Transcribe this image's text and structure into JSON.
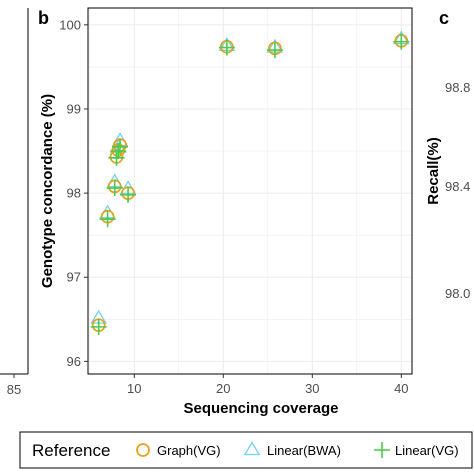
{
  "colors": {
    "graph": "#e5a11a",
    "bwa": "#6dd3ee",
    "vg": "#4cc94c",
    "grid": "#ebebeb",
    "frame": "#000000"
  },
  "left_panel": {
    "tick_labels": [
      "85"
    ]
  },
  "right_panel": {
    "letter": "c",
    "ylabel": "Recall(%)",
    "tick_labels": [
      "98.8",
      "98.4",
      "98.0"
    ]
  },
  "chart_data": {
    "type": "scatter",
    "panel_letter": "b",
    "title": "",
    "xlabel": "Sequencing coverage",
    "ylabel": "Genotype concordance (%)",
    "xlim": [
      4.8,
      41.2
    ],
    "ylim": [
      95.85,
      100.2
    ],
    "x_ticks": [
      10,
      20,
      30,
      40
    ],
    "y_ticks": [
      96,
      97,
      98,
      99,
      100
    ],
    "grid": true,
    "legend_position": "bottom",
    "series": [
      {
        "name": "Graph(VG)",
        "marker": "circle",
        "x": [
          6.0,
          7.0,
          7.8,
          8.0,
          8.2,
          8.4,
          9.3,
          20.4,
          25.8,
          40.0
        ],
        "y": [
          96.43,
          97.72,
          98.08,
          98.43,
          98.51,
          98.57,
          98.0,
          99.74,
          99.72,
          99.81
        ]
      },
      {
        "name": "Linear(BWA)",
        "marker": "triangle",
        "x": [
          6.0,
          7.0,
          7.8,
          8.0,
          8.2,
          8.4,
          9.3,
          20.4,
          25.8,
          40.0
        ],
        "y": [
          96.51,
          97.76,
          98.13,
          98.47,
          98.54,
          98.62,
          98.05,
          99.75,
          99.73,
          99.83
        ]
      },
      {
        "name": "Linear(VG)",
        "marker": "plus",
        "x": [
          6.0,
          7.0,
          7.8,
          8.0,
          8.2,
          8.4,
          9.3,
          20.4,
          25.8,
          40.0
        ],
        "y": [
          96.41,
          97.69,
          98.06,
          98.42,
          98.5,
          98.55,
          97.98,
          99.73,
          99.7,
          99.8
        ]
      }
    ]
  },
  "legend": {
    "title": "Reference",
    "items": [
      {
        "label": "Graph(VG)",
        "marker": "circle"
      },
      {
        "label": "Linear(BWA)",
        "marker": "triangle"
      },
      {
        "label": "Linear(VG)",
        "marker": "plus"
      }
    ]
  }
}
